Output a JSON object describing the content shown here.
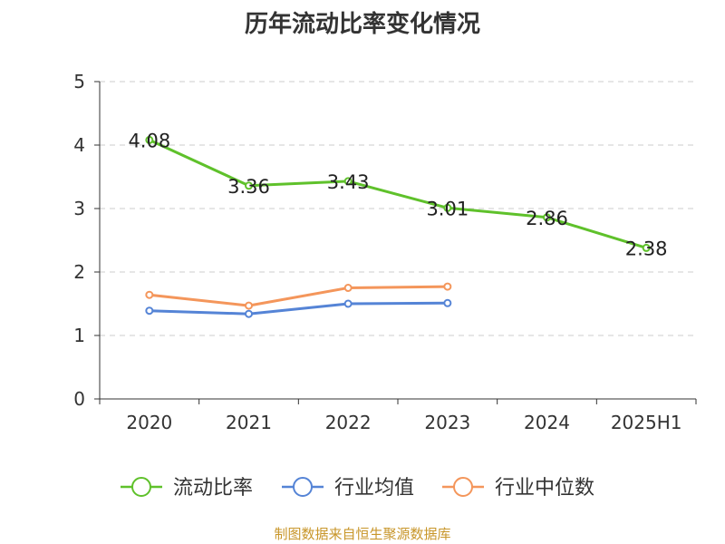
{
  "chart_data": {
    "type": "line",
    "title": "历年流动比率变化情况",
    "categories": [
      "2020",
      "2021",
      "2022",
      "2023",
      "2024",
      "2025H1"
    ],
    "ylim": [
      0,
      5
    ],
    "yticks": [
      "0",
      "1",
      "2",
      "3",
      "4",
      "5"
    ],
    "grid": true,
    "legend_position": "bottom",
    "series": [
      {
        "name": "流动比率",
        "color": "#5fc12b",
        "values": [
          4.08,
          3.36,
          3.43,
          3.01,
          2.86,
          2.38
        ],
        "labels": [
          "4.08",
          "3.36",
          "3.43",
          "3.01",
          "2.86",
          "2.38"
        ]
      },
      {
        "name": "行业均值",
        "color": "#5584d6",
        "values": [
          1.39,
          1.34,
          1.5,
          1.51,
          null,
          null
        ]
      },
      {
        "name": "行业中位数",
        "color": "#f4965b",
        "values": [
          1.64,
          1.47,
          1.75,
          1.77,
          null,
          null
        ]
      }
    ]
  },
  "footer": {
    "source": "制图数据来自恒生聚源数据库"
  }
}
